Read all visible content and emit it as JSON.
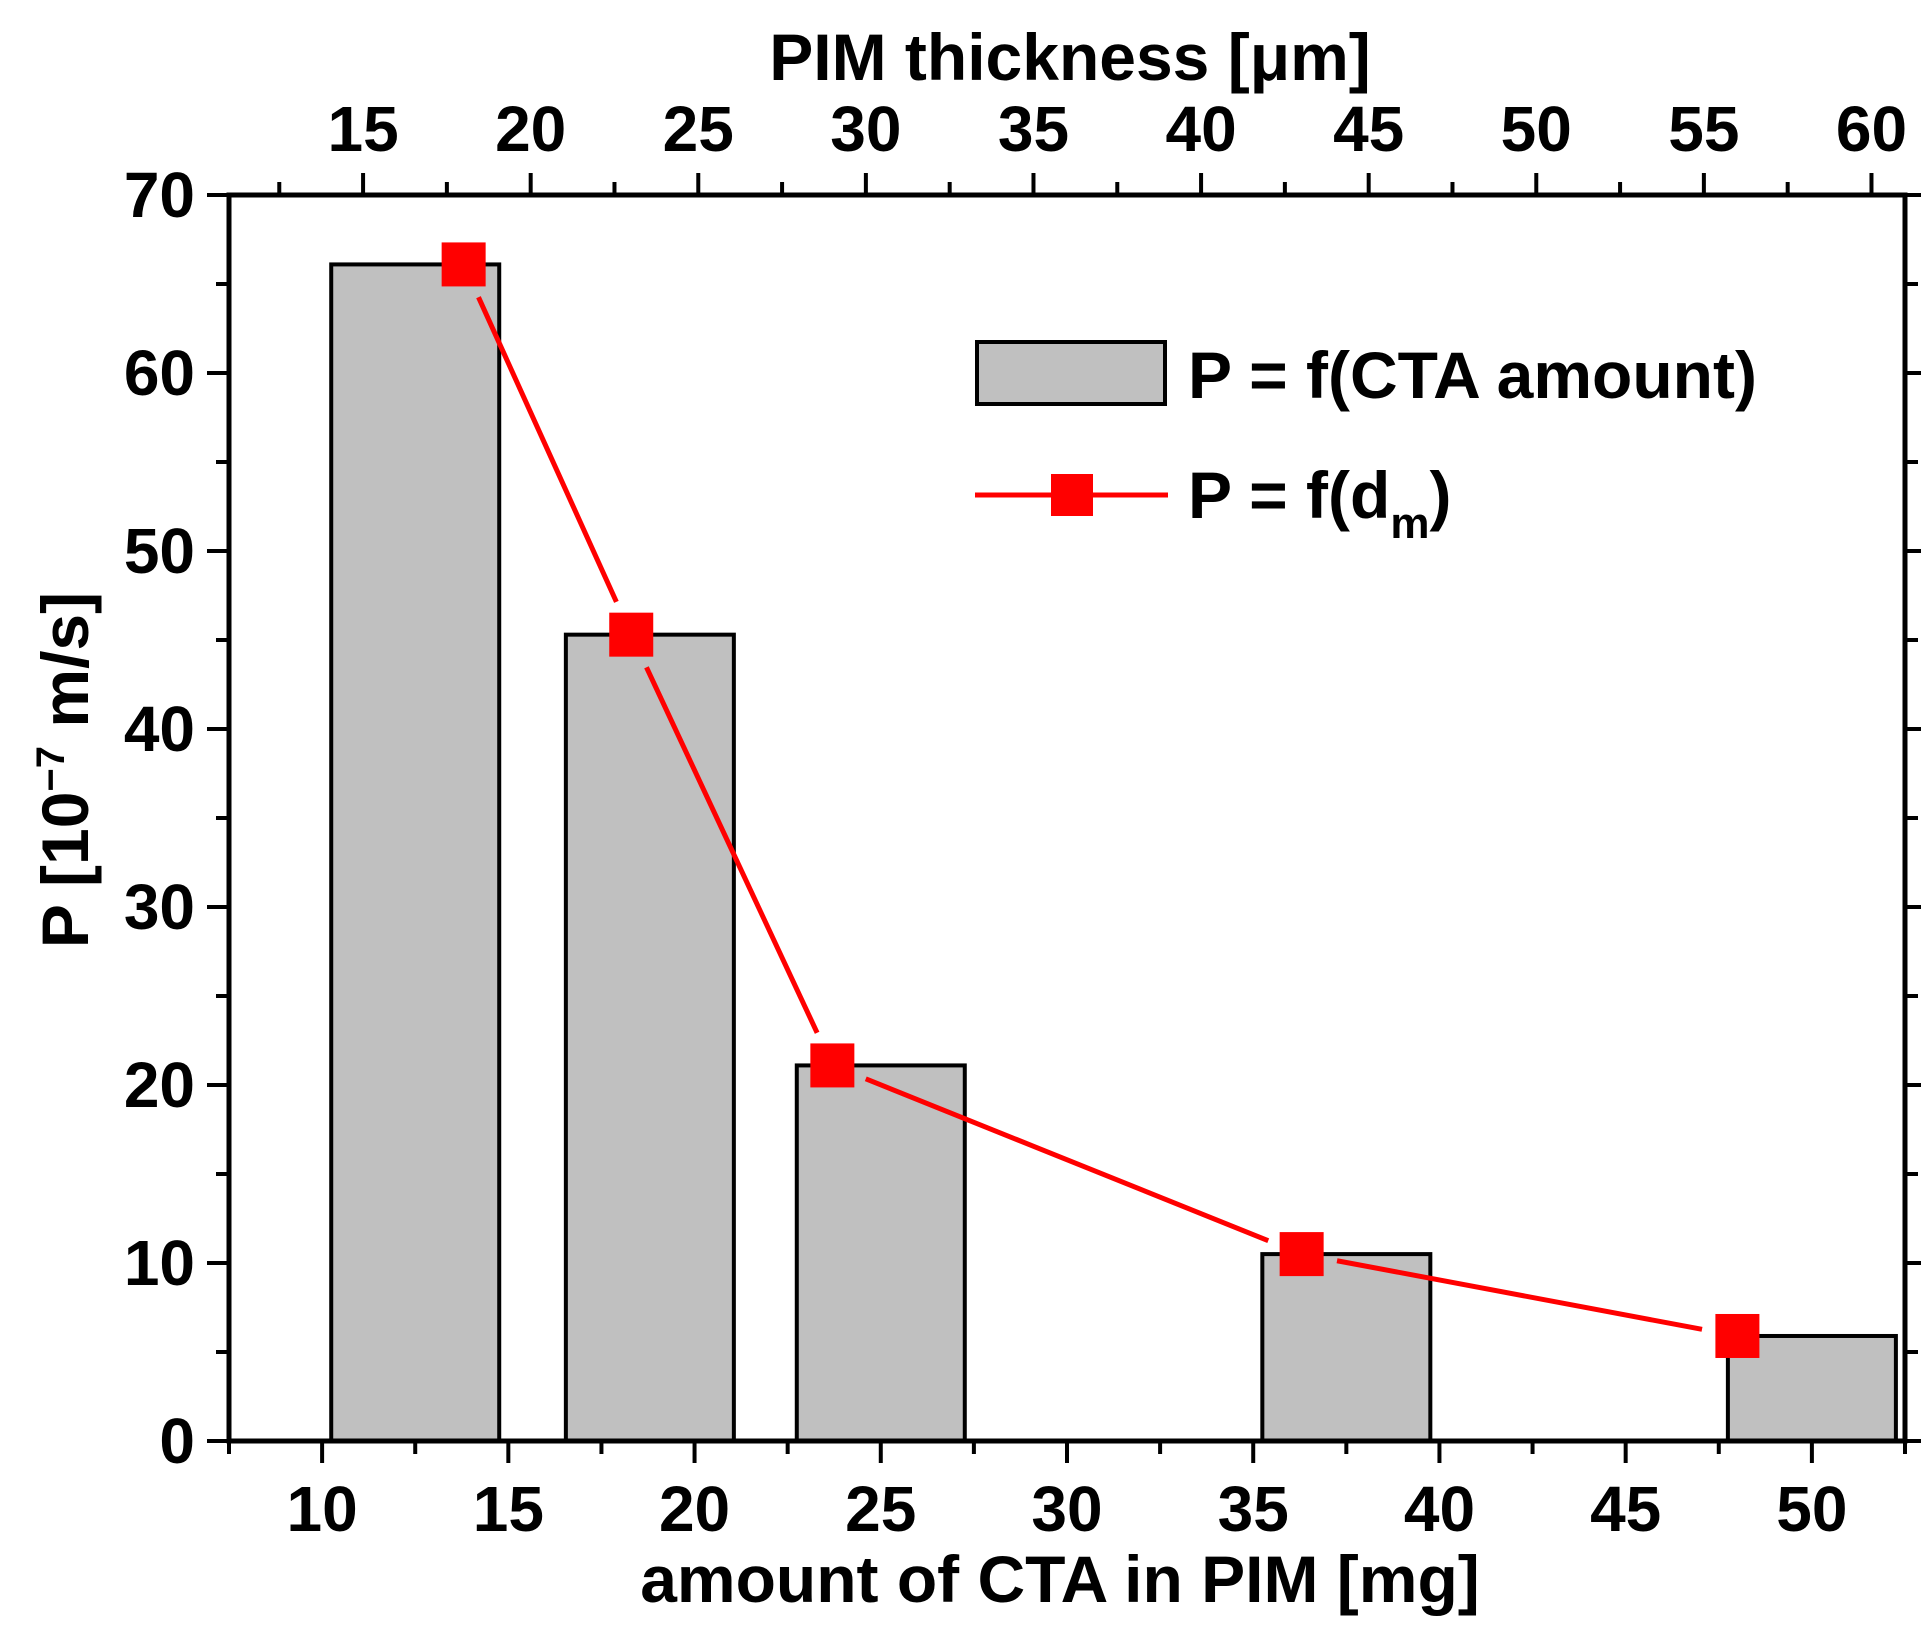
{
  "chart_data": {
    "type": "bar",
    "bottom_axis": {
      "label": "amount of CTA in PIM [mg]",
      "range": [
        7.5,
        52.5
      ],
      "ticks": [
        10,
        15,
        20,
        25,
        30,
        35,
        40,
        45,
        50
      ]
    },
    "top_axis": {
      "label_main": "PIM thickness [",
      "label_mu": "μ",
      "label_tail": "m]",
      "range": [
        11.0,
        61.0
      ],
      "ticks": [
        15,
        20,
        25,
        30,
        35,
        40,
        45,
        50,
        55,
        60
      ]
    },
    "y_axis": {
      "label_main": "P [10",
      "label_sup": "−7",
      "label_tail": " m/s]",
      "range": [
        0,
        70
      ],
      "ticks": [
        0,
        10,
        20,
        30,
        40,
        50,
        60,
        70
      ]
    },
    "series": [
      {
        "name": "P = f(CTA amount)",
        "kind": "bar",
        "axis": "bottom",
        "x": [
          12.5,
          18.8,
          25.0,
          37.5,
          50.0
        ],
        "values": [
          66.1,
          45.3,
          21.1,
          10.5,
          5.9
        ],
        "color": "#c0c0c0",
        "edge_color": "#000000"
      },
      {
        "name_main": "P = f(d",
        "name_sub": "m",
        "name_tail": ")",
        "kind": "line",
        "axis": "top",
        "x": [
          18,
          23,
          29,
          43,
          56
        ],
        "values": [
          66.1,
          45.3,
          21.1,
          10.5,
          5.9
        ],
        "color": "#ff0000"
      }
    ],
    "grid": false,
    "legend_position": "top-right"
  }
}
